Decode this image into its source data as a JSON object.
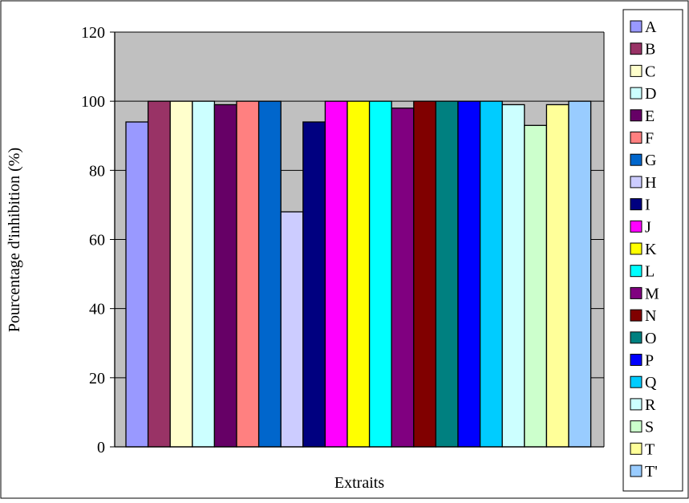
{
  "chart_data": {
    "type": "bar",
    "title": "",
    "xlabel": "Extraits",
    "ylabel": "Pourcentage d'inhibition (%)",
    "ylim": [
      0,
      120
    ],
    "yticks": [
      0,
      20,
      40,
      60,
      80,
      100,
      120
    ],
    "grid": true,
    "plot_background": "#c0c0c0",
    "legend_position": "right",
    "series": [
      {
        "name": "A",
        "value": 94,
        "color": "#9999ff"
      },
      {
        "name": "B",
        "value": 100,
        "color": "#993366"
      },
      {
        "name": "C",
        "value": 100,
        "color": "#ffffcc"
      },
      {
        "name": "D",
        "value": 100,
        "color": "#ccffff"
      },
      {
        "name": "E",
        "value": 99,
        "color": "#660066"
      },
      {
        "name": "F",
        "value": 100,
        "color": "#ff8080"
      },
      {
        "name": "G",
        "value": 100,
        "color": "#0066cc"
      },
      {
        "name": "H",
        "value": 68,
        "color": "#ccccff"
      },
      {
        "name": "I",
        "value": 94,
        "color": "#000080"
      },
      {
        "name": "J",
        "value": 100,
        "color": "#ff00ff"
      },
      {
        "name": "K",
        "value": 100,
        "color": "#ffff00"
      },
      {
        "name": "L",
        "value": 100,
        "color": "#00ffff"
      },
      {
        "name": "M",
        "value": 98,
        "color": "#800080"
      },
      {
        "name": "N",
        "value": 100,
        "color": "#800000"
      },
      {
        "name": "O",
        "value": 100,
        "color": "#008080"
      },
      {
        "name": "P",
        "value": 100,
        "color": "#0000ff"
      },
      {
        "name": "Q",
        "value": 100,
        "color": "#00ccff"
      },
      {
        "name": "R",
        "value": 99,
        "color": "#ccffff"
      },
      {
        "name": "S",
        "value": 93,
        "color": "#ccffcc"
      },
      {
        "name": "T",
        "value": 99,
        "color": "#ffff99"
      },
      {
        "name": "T'",
        "value": 100,
        "color": "#99ccff"
      }
    ]
  }
}
